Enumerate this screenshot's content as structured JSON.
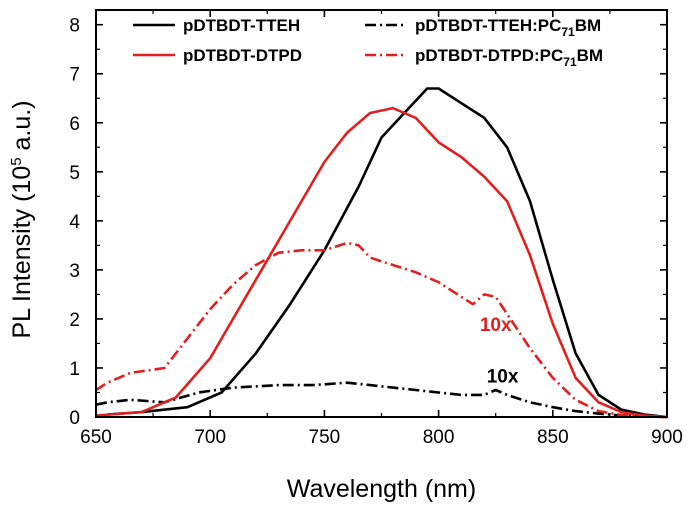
{
  "chart_data": {
    "type": "line",
    "xlabel": "Wavelength (nm)",
    "ylabel": {
      "prefix": "PL Intensity (10",
      "sup": "5",
      "suffix": " a.u.)"
    },
    "xlim": [
      650,
      900
    ],
    "ylim": [
      0,
      8.3
    ],
    "xticks": [
      650,
      700,
      750,
      800,
      850,
      900
    ],
    "yticks": [
      0,
      1,
      2,
      3,
      4,
      5,
      6,
      7,
      8
    ],
    "legend_position": "top",
    "series": [
      {
        "name": "pDTBDT-TTEH",
        "legend": {
          "main": "pDTBDT-TTEH",
          "sub": "",
          "after": ""
        },
        "color": "#000000",
        "style": "solid",
        "x": [
          655,
          670,
          690,
          705,
          720,
          735,
          750,
          765,
          775,
          785,
          795,
          800,
          810,
          820,
          830,
          840,
          850,
          860,
          870,
          880,
          890,
          900
        ],
        "y": [
          0.05,
          0.1,
          0.2,
          0.5,
          1.3,
          2.3,
          3.4,
          4.7,
          5.7,
          6.2,
          6.7,
          6.7,
          6.4,
          6.1,
          5.5,
          4.4,
          2.8,
          1.3,
          0.45,
          0.15,
          0.05,
          0.0
        ]
      },
      {
        "name": "pDTBDT-TTEH:PC71BM",
        "legend": {
          "main": "pDTBDT-TTEH:PC",
          "sub": "71",
          "after": "BM"
        },
        "color": "#000000",
        "style": "dashdot",
        "x": [
          650,
          655,
          665,
          680,
          695,
          710,
          730,
          745,
          760,
          770,
          780,
          790,
          800,
          810,
          820,
          825,
          830,
          840,
          850,
          860,
          870,
          880,
          890,
          900
        ],
        "y": [
          0.25,
          0.3,
          0.35,
          0.3,
          0.5,
          0.6,
          0.65,
          0.65,
          0.7,
          0.65,
          0.6,
          0.55,
          0.5,
          0.45,
          0.45,
          0.55,
          0.45,
          0.3,
          0.2,
          0.12,
          0.07,
          0.03,
          0.01,
          0.0
        ]
      },
      {
        "name": "pDTBDT-DTPD",
        "legend": {
          "main": "pDTBDT-DTPD",
          "sub": "",
          "after": ""
        },
        "color": "#e02020",
        "style": "solid",
        "x": [
          650,
          670,
          685,
          700,
          710,
          720,
          735,
          750,
          760,
          770,
          780,
          790,
          800,
          810,
          820,
          830,
          840,
          850,
          860,
          870,
          880,
          890,
          900
        ],
        "y": [
          0.03,
          0.1,
          0.4,
          1.2,
          2.0,
          2.8,
          4.0,
          5.2,
          5.8,
          6.2,
          6.3,
          6.1,
          5.6,
          5.3,
          4.9,
          4.4,
          3.3,
          1.9,
          0.8,
          0.3,
          0.1,
          0.03,
          0.0
        ]
      },
      {
        "name": "pDTBDT-DTPD:PC71BM",
        "legend": {
          "main": "pDTBDT-DTPD:PC",
          "sub": "71",
          "after": "BM"
        },
        "color": "#e02020",
        "style": "dashdot",
        "x": [
          650,
          655,
          665,
          680,
          690,
          700,
          710,
          720,
          730,
          740,
          750,
          760,
          765,
          770,
          780,
          790,
          800,
          810,
          815,
          820,
          825,
          830,
          840,
          850,
          860,
          870,
          880,
          890,
          900
        ],
        "y": [
          0.55,
          0.7,
          0.9,
          1.0,
          1.6,
          2.2,
          2.7,
          3.1,
          3.35,
          3.4,
          3.4,
          3.55,
          3.5,
          3.25,
          3.1,
          2.95,
          2.75,
          2.45,
          2.3,
          2.5,
          2.45,
          2.1,
          1.4,
          0.8,
          0.35,
          0.12,
          0.04,
          0.01,
          0.0
        ]
      }
    ],
    "annotations": [
      {
        "text": "10x",
        "x": 825,
        "y": 1.75,
        "color": "#e02020"
      },
      {
        "text": "10x",
        "x": 828,
        "y": 0.7,
        "color": "#000000"
      }
    ]
  }
}
